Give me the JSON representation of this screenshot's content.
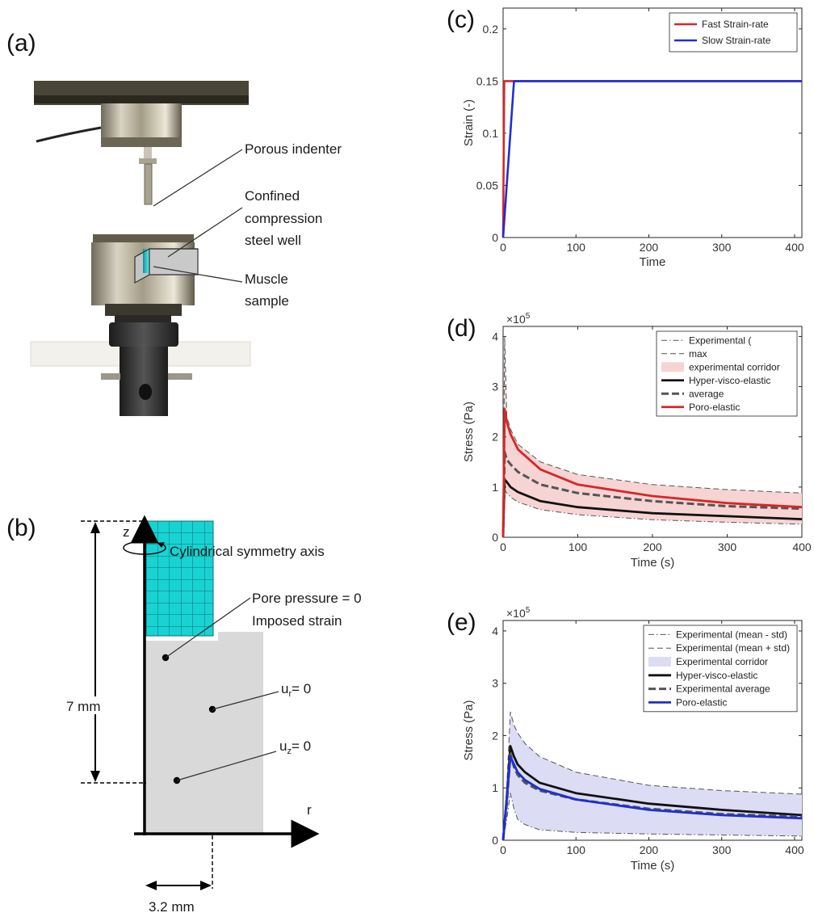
{
  "panels": {
    "a": {
      "label": "(a)",
      "callouts": {
        "indenter": "Porous indenter",
        "well_1": "Confined",
        "well_2": "compression",
        "well_3": "steel well",
        "muscle_1": "Muscle",
        "muscle_2": "sample"
      }
    },
    "b": {
      "label": "(b)",
      "z_axis": "z",
      "r_axis": "r",
      "symmetry": "Cylindrical symmetry axis",
      "pore_1": "Pore pressure = 0",
      "pore_2": "Imposed strain",
      "ur_main": "u",
      "ur_sub": "r",
      "ur_rest": "= 0",
      "uz_main": "u",
      "uz_sub": "z",
      "uz_rest": "= 0",
      "height": "7 mm",
      "radius": "3.2 mm"
    },
    "c": {
      "label": "(c)"
    },
    "d": {
      "label": "(d)"
    },
    "e": {
      "label": "(e)"
    }
  },
  "colors": {
    "red": "#d62728",
    "blue": "#1f2fd0",
    "black": "#111111",
    "gray_dash": "#555555",
    "red_fill": "#f7d4d4",
    "blue_fill": "#dcdcf5",
    "cyan": "#19d3d3",
    "steel_gray": "#d9d9d9"
  },
  "chart_data": [
    {
      "panel": "c",
      "type": "line",
      "xlabel": "Time",
      "ylabel": "Strain (-)",
      "xlim": [
        0,
        410
      ],
      "ylim": [
        0,
        0.22
      ],
      "xticks": [
        0,
        100,
        200,
        300,
        400
      ],
      "yticks": [
        0,
        0.05,
        0.1,
        0.15,
        0.2
      ],
      "legend": "top-right",
      "series": [
        {
          "name": "Fast Strain-rate",
          "color": "#d62728",
          "x": [
            0,
            1.5,
            410
          ],
          "y": [
            0,
            0.15,
            0.15
          ]
        },
        {
          "name": "Slow Strain-rate",
          "color": "#1f2fd0",
          "x": [
            0,
            15,
            410
          ],
          "y": [
            0,
            0.15,
            0.15
          ]
        }
      ]
    },
    {
      "panel": "d",
      "type": "line",
      "xlabel": "Time (s)",
      "ylabel": "Stress (Pa)",
      "exponent": "×10",
      "exponent_power": "5",
      "xlim": [
        0,
        400
      ],
      "ylim": [
        0,
        4.2
      ],
      "xticks": [
        0,
        100,
        200,
        300,
        400
      ],
      "yticks": [
        0,
        1,
        2,
        3,
        4
      ],
      "legend": "top-right",
      "band": {
        "name": "experimental corridor",
        "lower_index": 0,
        "upper_index": 1,
        "color": "#f7d4d4"
      },
      "series": [
        {
          "name": "Experimental (",
          "style": "dashdot",
          "color": "#555555",
          "x": [
            0,
            2,
            5,
            10,
            20,
            50,
            100,
            200,
            300,
            400
          ],
          "y": [
            0,
            0.95,
            0.88,
            0.8,
            0.7,
            0.55,
            0.45,
            0.35,
            0.3,
            0.26
          ]
        },
        {
          "name": "max",
          "style": "dash-thin",
          "color": "#555555",
          "x": [
            0,
            2,
            5,
            10,
            20,
            50,
            100,
            200,
            300,
            400
          ],
          "y": [
            0,
            4.0,
            2.4,
            2.15,
            1.85,
            1.5,
            1.25,
            1.05,
            0.95,
            0.88
          ]
        },
        {
          "name": "Hyper-visco-elastic",
          "style": "solid",
          "color": "#111111",
          "x": [
            0,
            2,
            5,
            10,
            20,
            50,
            100,
            200,
            300,
            400
          ],
          "y": [
            0,
            1.15,
            1.1,
            1.0,
            0.9,
            0.72,
            0.6,
            0.48,
            0.42,
            0.36
          ]
        },
        {
          "name": "average",
          "style": "dash-thick",
          "color": "#555555",
          "x": [
            0,
            2,
            5,
            10,
            20,
            50,
            100,
            200,
            300,
            400
          ],
          "y": [
            0,
            1.7,
            1.55,
            1.45,
            1.3,
            1.05,
            0.88,
            0.72,
            0.62,
            0.57
          ]
        },
        {
          "name": "Poro-elastic",
          "style": "solid",
          "color": "#d62728",
          "x": [
            0,
            2,
            5,
            10,
            20,
            50,
            100,
            200,
            300,
            400
          ],
          "y": [
            0,
            2.55,
            2.3,
            2.05,
            1.75,
            1.35,
            1.05,
            0.82,
            0.68,
            0.6
          ]
        }
      ]
    },
    {
      "panel": "e",
      "type": "line",
      "xlabel": "Time (s)",
      "ylabel": "Stress (Pa)",
      "exponent": "×10",
      "exponent_power": "5",
      "xlim": [
        0,
        410
      ],
      "ylim": [
        0,
        4.2
      ],
      "xticks": [
        0,
        100,
        200,
        300,
        400
      ],
      "yticks": [
        0,
        1,
        2,
        3,
        4
      ],
      "legend": "top-right",
      "band": {
        "name": "Experimental corridor",
        "lower_index": 0,
        "upper_index": 1,
        "color": "#dcdcf5"
      },
      "series": [
        {
          "name": "Experimental (mean - std)",
          "style": "dashdot",
          "color": "#555555",
          "x": [
            0,
            5,
            10,
            15,
            20,
            30,
            50,
            100,
            200,
            300,
            410
          ],
          "y": [
            0,
            0.4,
            0.9,
            0.6,
            0.4,
            0.3,
            0.2,
            0.15,
            0.12,
            0.1,
            0.08
          ]
        },
        {
          "name": "Experimental (mean + std)",
          "style": "dash-thin",
          "color": "#555555",
          "x": [
            0,
            5,
            10,
            15,
            20,
            30,
            50,
            100,
            200,
            300,
            410
          ],
          "y": [
            0,
            1.0,
            2.45,
            2.2,
            2.05,
            1.85,
            1.6,
            1.3,
            1.05,
            0.95,
            0.88
          ]
        },
        {
          "name": "Hyper-visco-elastic",
          "style": "solid",
          "color": "#111111",
          "x": [
            0,
            5,
            10,
            15,
            20,
            30,
            50,
            100,
            200,
            300,
            410
          ],
          "y": [
            0,
            0.8,
            1.8,
            1.6,
            1.45,
            1.3,
            1.1,
            0.9,
            0.7,
            0.58,
            0.48
          ]
        },
        {
          "name": "Experimental average",
          "style": "dash-thick",
          "color": "#555555",
          "x": [
            0,
            5,
            10,
            15,
            20,
            30,
            50,
            100,
            200,
            300,
            410
          ],
          "y": [
            0,
            0.7,
            1.65,
            1.4,
            1.25,
            1.1,
            0.95,
            0.78,
            0.6,
            0.5,
            0.45
          ]
        },
        {
          "name": "Poro-elastic",
          "style": "solid",
          "color": "#1f2fd0",
          "x": [
            0,
            5,
            10,
            15,
            20,
            30,
            50,
            100,
            200,
            300,
            410
          ],
          "y": [
            0,
            0.8,
            1.6,
            1.45,
            1.3,
            1.15,
            0.98,
            0.78,
            0.58,
            0.48,
            0.42
          ]
        }
      ]
    }
  ]
}
